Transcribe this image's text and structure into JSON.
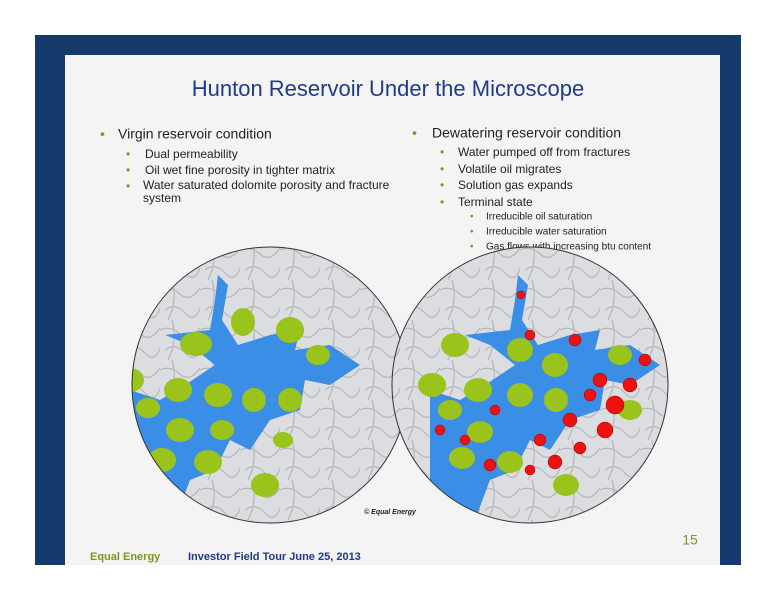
{
  "title": "Hunton Reservoir Under the Microscope",
  "left": {
    "heading": "Virgin reservoir condition",
    "items": [
      "Dual permeability",
      "Oil wet fine porosity in tighter matrix",
      "Water saturated dolomite porosity and fracture system"
    ]
  },
  "right": {
    "heading": "Dewatering reservoir condition",
    "items": [
      "Water pumped off from fractures",
      "Volatile oil migrates",
      "Solution gas expands",
      "Terminal state"
    ],
    "subitems": [
      "Irreducible oil saturation",
      "Irreducible water saturation",
      "Gas flows with increasing btu content"
    ]
  },
  "copyright": "© Equal Energy",
  "page_number": "15",
  "footer": {
    "company": "Equal Energy",
    "event": "Investor Field Tour June 25, 2013"
  }
}
